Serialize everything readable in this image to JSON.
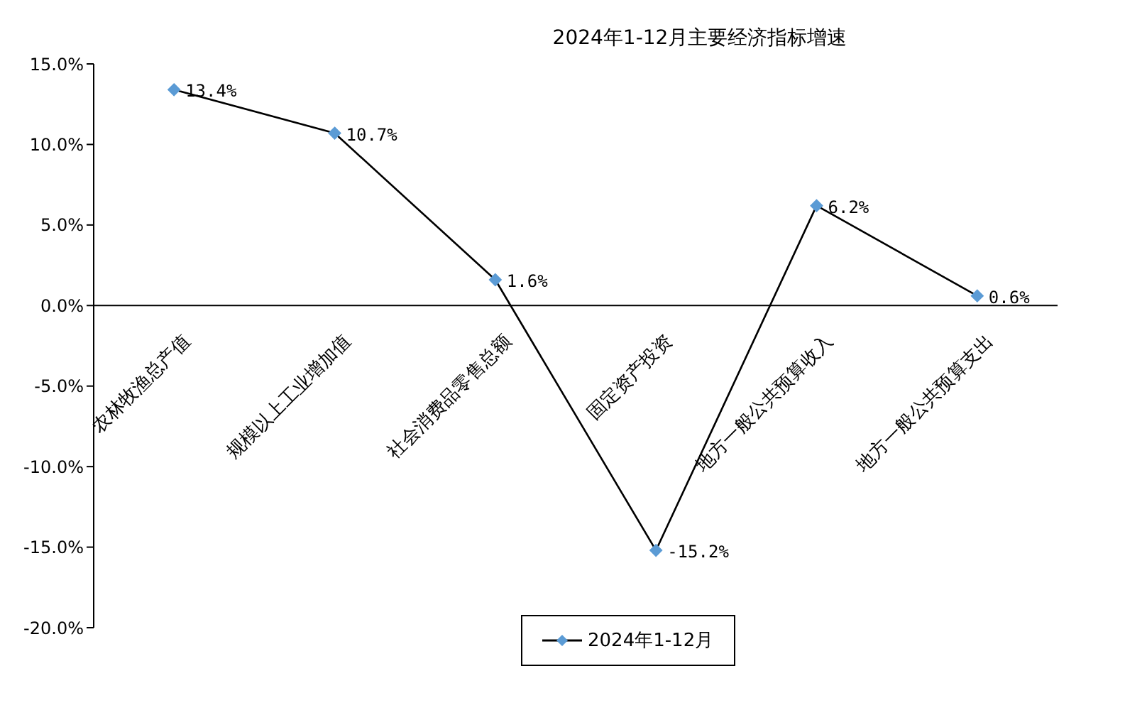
{
  "chart_data": {
    "type": "line",
    "title": "2024年1-12月主要经济指标增速",
    "categories": [
      "农林牧渔总产值",
      "规模以上工业增加值",
      "社会消费品零售总额",
      "固定资产投资",
      "地方一般公共预算收入",
      "地方一般公共预算支出"
    ],
    "series": [
      {
        "name": "2024年1-12月",
        "color": "#000000",
        "values": [
          13.4,
          10.7,
          1.6,
          -15.2,
          6.2,
          0.6
        ],
        "value_labels": [
          "13.4%",
          "10.7%",
          "1.6%",
          "-15.2%",
          "6.2%",
          "0.6%"
        ]
      }
    ],
    "ylim": [
      -20,
      15
    ],
    "yticks": [
      {
        "value": 15,
        "label": "15.0%"
      },
      {
        "value": 10,
        "label": "10.0%"
      },
      {
        "value": 5,
        "label": "5.0%"
      },
      {
        "value": 0,
        "label": "0.0%"
      },
      {
        "value": -5,
        "label": "-5.0%"
      },
      {
        "value": -10,
        "label": "-10.0%"
      },
      {
        "value": -15,
        "label": "-15.0%"
      },
      {
        "value": -20,
        "label": "-20.0%"
      }
    ],
    "grid": false,
    "legend": "bottom",
    "marker": "diamond",
    "line_style": "solid"
  }
}
